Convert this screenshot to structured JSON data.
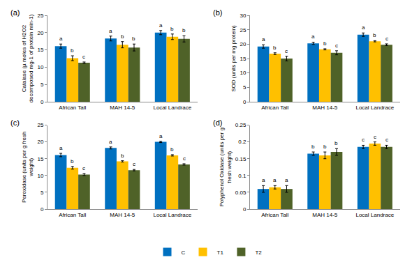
{
  "chart_data": [
    {
      "type": "bar",
      "title": "(a)",
      "ylabel": "Catalase (µ moles of H2O2 decomposed mg-1 of protein min-1)",
      "categories": [
        "African Tall",
        "MAH 14-5",
        "Local Landrace"
      ],
      "ylim": [
        0,
        25
      ],
      "yticks": [
        0,
        5,
        10,
        15,
        20,
        25
      ],
      "grid": false,
      "legend": "bottom",
      "series": [
        {
          "name": "C",
          "color": "#0070C0",
          "values": [
            16.1,
            18.3,
            20.0
          ],
          "error": [
            0.6,
            0.7,
            0.6
          ],
          "letters": [
            "a",
            "a",
            "a"
          ]
        },
        {
          "name": "T1",
          "color": "#FFC000",
          "values": [
            12.6,
            16.5,
            18.8
          ],
          "error": [
            0.7,
            0.9,
            0.8
          ],
          "letters": [
            "b",
            "b",
            "b"
          ]
        },
        {
          "name": "T2",
          "color": "#4F6228",
          "values": [
            11.3,
            15.7,
            18.2
          ],
          "error": [
            0.2,
            1.0,
            0.9
          ],
          "letters": [
            "c",
            "b",
            "b"
          ]
        }
      ]
    },
    {
      "type": "bar",
      "title": "(b)",
      "ylabel": "SOD (units per mg protein)",
      "categories": [
        "African Tall",
        "MAH 14-5",
        "Local Landrace"
      ],
      "ylim": [
        0,
        30
      ],
      "yticks": [
        0,
        5,
        10,
        15,
        20,
        25,
        30
      ],
      "grid": false,
      "legend": "bottom",
      "series": [
        {
          "name": "C",
          "color": "#0070C0",
          "values": [
            19.2,
            20.3,
            23.3
          ],
          "error": [
            0.6,
            0.4,
            0.6
          ],
          "letters": [
            "a",
            "a",
            "a"
          ]
        },
        {
          "name": "T1",
          "color": "#FFC000",
          "values": [
            16.7,
            18.2,
            21.0
          ],
          "error": [
            0.3,
            0.2,
            0.2
          ],
          "letters": [
            "b",
            "b",
            "b"
          ]
        },
        {
          "name": "T2",
          "color": "#4F6228",
          "values": [
            15.0,
            17.0,
            19.8
          ],
          "error": [
            0.8,
            0.7,
            0.3
          ],
          "letters": [
            "c",
            "c",
            "c"
          ]
        }
      ]
    },
    {
      "type": "bar",
      "title": "(c)",
      "ylabel": "Peroxidase (units per g fresh weight)",
      "categories": [
        "African Tall",
        "MAH 14-5",
        "Local Landrace"
      ],
      "ylim": [
        0,
        25
      ],
      "yticks": [
        0,
        5,
        10,
        15,
        20,
        25
      ],
      "grid": false,
      "legend": "bottom",
      "series": [
        {
          "name": "C",
          "color": "#0070C0",
          "values": [
            16.1,
            18.2,
            20.0
          ],
          "error": [
            0.5,
            0.3,
            0.2
          ],
          "letters": [
            "a",
            "a",
            "a"
          ]
        },
        {
          "name": "T1",
          "color": "#FFC000",
          "values": [
            12.3,
            14.2,
            16.0
          ],
          "error": [
            0.4,
            0.2,
            0.2
          ],
          "letters": [
            "b",
            "b",
            "b"
          ]
        },
        {
          "name": "T2",
          "color": "#4F6228",
          "values": [
            10.3,
            11.6,
            13.3
          ],
          "error": [
            0.3,
            0.2,
            0.2
          ],
          "letters": [
            "c",
            "c",
            "c"
          ]
        }
      ]
    },
    {
      "type": "bar",
      "title": "(d)",
      "ylabel": "Polyphenol Oxidase (units per g fresh weight)",
      "categories": [
        "African Tall",
        "MAH 14-5",
        "Local Landrace"
      ],
      "ylim": [
        0,
        0.25
      ],
      "yticks": [
        0,
        0.05,
        0.1,
        0.15,
        0.2,
        0.25
      ],
      "grid": false,
      "legend": "bottom",
      "series": [
        {
          "name": "C",
          "color": "#0070C0",
          "values": [
            0.06,
            0.165,
            0.185
          ],
          "error": [
            0.01,
            0.005,
            0.005
          ],
          "letters": [
            "a",
            "b",
            "c"
          ]
        },
        {
          "name": "T1",
          "color": "#FFC000",
          "values": [
            0.065,
            0.16,
            0.195
          ],
          "error": [
            0.005,
            0.01,
            0.005
          ],
          "letters": [
            "a",
            "b",
            "c"
          ]
        },
        {
          "name": "T2",
          "color": "#4F6228",
          "values": [
            0.06,
            0.17,
            0.185
          ],
          "error": [
            0.01,
            0.01,
            0.005
          ],
          "letters": [
            "a",
            "b",
            "c"
          ]
        }
      ]
    }
  ]
}
